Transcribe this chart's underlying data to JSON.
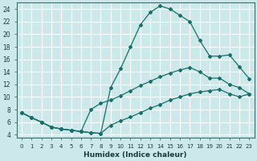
{
  "xlabel": "Humidex (Indice chaleur)",
  "bg_color": "#cce8ea",
  "grid_color": "#ffffff",
  "line_color": "#1a6e6a",
  "xlim_min": -0.5,
  "xlim_max": 23.5,
  "ylim_min": 3.5,
  "ylim_max": 25.0,
  "xticks": [
    0,
    1,
    2,
    3,
    4,
    5,
    6,
    7,
    8,
    9,
    10,
    11,
    12,
    13,
    14,
    15,
    16,
    17,
    18,
    19,
    20,
    21,
    22,
    23
  ],
  "yticks": [
    4,
    6,
    8,
    10,
    12,
    14,
    16,
    18,
    20,
    22,
    24
  ],
  "line1_x": [
    0,
    1,
    2,
    3,
    4,
    5,
    6,
    7,
    8,
    9,
    10,
    11,
    12,
    13,
    14,
    15,
    16,
    17,
    18,
    19,
    20,
    21,
    22,
    23
  ],
  "line1_y": [
    7.5,
    6.7,
    6.0,
    5.2,
    4.9,
    4.7,
    4.5,
    4.3,
    4.2,
    11.5,
    14.5,
    18.0,
    21.5,
    23.5,
    24.5,
    24.0,
    23.0,
    22.0,
    19.0,
    16.5,
    16.5,
    16.7,
    14.8,
    12.9
  ],
  "line2_x": [
    0,
    1,
    2,
    3,
    4,
    5,
    6,
    7,
    8,
    9,
    10,
    11,
    12,
    13,
    14,
    15,
    16,
    17,
    18,
    19,
    20,
    21,
    22,
    23
  ],
  "line2_y": [
    7.5,
    6.7,
    6.0,
    5.2,
    4.9,
    4.7,
    4.5,
    8.0,
    9.0,
    9.5,
    10.2,
    11.0,
    11.8,
    12.5,
    13.2,
    13.8,
    14.3,
    14.7,
    14.0,
    13.0,
    13.0,
    12.0,
    11.5,
    10.5
  ],
  "line3_x": [
    0,
    1,
    2,
    3,
    4,
    5,
    6,
    7,
    8,
    9,
    10,
    11,
    12,
    13,
    14,
    15,
    16,
    17,
    18,
    19,
    20,
    21,
    22,
    23
  ],
  "line3_y": [
    7.5,
    6.7,
    6.0,
    5.2,
    4.9,
    4.7,
    4.5,
    4.3,
    4.2,
    5.5,
    6.2,
    6.8,
    7.5,
    8.2,
    8.8,
    9.5,
    10.0,
    10.5,
    10.8,
    11.0,
    11.2,
    10.5,
    10.0,
    10.5
  ]
}
